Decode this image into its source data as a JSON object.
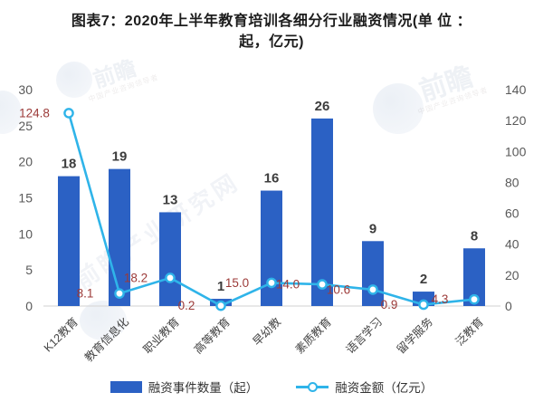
{
  "title": {
    "line1": "图表7：2020年上半年教育培训各细分行业融资情况(单 位 ：",
    "line2": "起，亿元)"
  },
  "chart_data": {
    "type": "bar+line",
    "title": "2020年上半年教育培训各细分行业融资情况",
    "categories": [
      "K12教育",
      "教育信息化",
      "职业教育",
      "高等教育",
      "早幼教",
      "素质教育",
      "语言学习",
      "留学服务",
      "泛教育"
    ],
    "series": [
      {
        "name": "融资事件数量（起）",
        "type": "bar",
        "axis": "left",
        "color": "#2b61c4",
        "values": [
          18,
          19,
          13,
          1,
          16,
          26,
          9,
          2,
          8
        ],
        "labels": [
          "18",
          "19",
          "13",
          "1",
          "16",
          "26",
          "9",
          "2",
          "8"
        ]
      },
      {
        "name": "融资金额（亿元）",
        "type": "line",
        "axis": "right",
        "color": "#2fb4e9",
        "values": [
          124.8,
          8.1,
          18.2,
          0.2,
          15.0,
          14.0,
          10.6,
          0.9,
          4.3
        ],
        "labels": [
          "124.8",
          "8.1",
          "18.2",
          "0.2",
          "15.0",
          "14.0",
          "10.6",
          "0.9",
          "4.3"
        ]
      }
    ],
    "left_axis": {
      "min": 0,
      "max": 30,
      "ticks": [
        "0",
        "5",
        "10",
        "15",
        "20",
        "25",
        "30"
      ]
    },
    "right_axis": {
      "min": 0,
      "max": 140,
      "ticks": [
        "0",
        "20",
        "40",
        "60",
        "80",
        "100",
        "120",
        "140"
      ]
    },
    "grid": false,
    "legend_position": "bottom"
  },
  "legend": {
    "bar_label": "融资事件数量（起）",
    "line_label": "融资金额（亿元）"
  },
  "colors": {
    "bar": "#2b61c4",
    "line": "#2fb4e9",
    "bar_value_label": "#3d3d3d",
    "line_value_label": "#9c3a38",
    "axis_text": "#595959",
    "axis_line": "#d9d9d9",
    "category_text": "#444444",
    "title_text": "#1c1c1c"
  },
  "watermark": {
    "logo_text": "前瞻",
    "logo_subtext": "中国产业咨询领导者",
    "center_text": "前瞻产业研究网"
  }
}
